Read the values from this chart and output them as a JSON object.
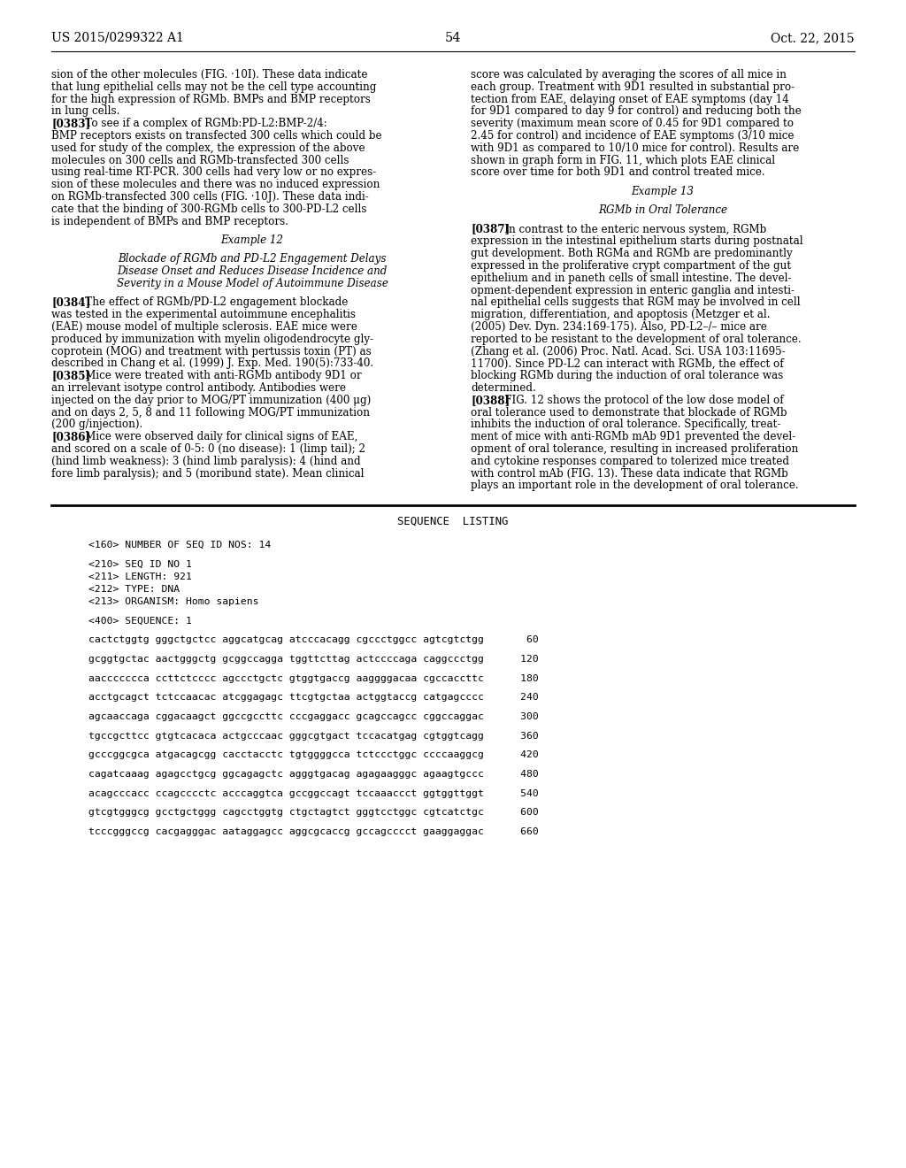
{
  "header_left": "US 2015/0299322 A1",
  "header_right": "Oct. 22, 2015",
  "page_number": "54",
  "background_color": "#ffffff",
  "text_color": "#000000",
  "left_col_lines": [
    {
      "type": "normal",
      "text": "sion of the other molecules (FIG. ·10I). These data indicate"
    },
    {
      "type": "normal",
      "text": "that lung epithelial cells may not be the cell type accounting"
    },
    {
      "type": "normal",
      "text": "for the high expression of RGMb. BMPs and BMP receptors"
    },
    {
      "type": "normal",
      "text": "in lung cells."
    },
    {
      "type": "para",
      "bold": "[0383]",
      "text": "   To see if a complex of RGMb:PD-L2:BMP-2/4:"
    },
    {
      "type": "normal",
      "text": "BMP receptors exists on transfected 300 cells which could be"
    },
    {
      "type": "normal",
      "text": "used for study of the complex, the expression of the above"
    },
    {
      "type": "normal",
      "text": "molecules on 300 cells and RGMb-transfected 300 cells"
    },
    {
      "type": "normal",
      "text": "using real-time RT-PCR. 300 cells had very low or no expres-"
    },
    {
      "type": "normal",
      "text": "sion of these molecules and there was no induced expression"
    },
    {
      "type": "normal",
      "text": "on RGMb-transfected 300 cells (FIG. ·10J). These data indi-"
    },
    {
      "type": "normal",
      "text": "cate that the binding of 300-RGMb cells to 300-PD-L2 cells"
    },
    {
      "type": "normal",
      "text": "is independent of BMPs and BMP receptors."
    },
    {
      "type": "blank",
      "text": ""
    },
    {
      "type": "center",
      "text": "Example 12"
    },
    {
      "type": "blank",
      "text": ""
    },
    {
      "type": "center",
      "text": "Blockade of RGMb and PD-L2 Engagement Delays"
    },
    {
      "type": "center",
      "text": "Disease Onset and Reduces Disease Incidence and"
    },
    {
      "type": "center",
      "text": "Severity in a Mouse Model of Autoimmune Disease"
    },
    {
      "type": "blank",
      "text": ""
    },
    {
      "type": "para",
      "bold": "[0384]",
      "text": "   The effect of RGMb/PD-L2 engagement blockade"
    },
    {
      "type": "normal",
      "text": "was tested in the experimental autoimmune encephalitis"
    },
    {
      "type": "normal",
      "text": "(EAE) mouse model of multiple sclerosis. EAE mice were"
    },
    {
      "type": "normal",
      "text": "produced by immunization with myelin oligodendrocyte gly-"
    },
    {
      "type": "normal",
      "text": "coprotein (MOG) and treatment with pertussis toxin (PT) as"
    },
    {
      "type": "normal",
      "text": "described in Chang et al. (1999) J. Exp. Med. 190(5):733-40."
    },
    {
      "type": "para",
      "bold": "[0385]",
      "text": "   Mice were treated with anti-RGMb antibody 9D1 or"
    },
    {
      "type": "normal",
      "text": "an irrelevant isotype control antibody. Antibodies were"
    },
    {
      "type": "normal",
      "text": "injected on the day prior to MOG/PT immunization (400 μg)"
    },
    {
      "type": "normal",
      "text": "and on days 2, 5, 8 and 11 following MOG/PT immunization"
    },
    {
      "type": "normal",
      "text": "(200 g/injection)."
    },
    {
      "type": "para",
      "bold": "[0386]",
      "text": "   Mice were observed daily for clinical signs of EAE,"
    },
    {
      "type": "normal",
      "text": "and scored on a scale of 0-5: 0 (no disease): 1 (limp tail); 2"
    },
    {
      "type": "normal",
      "text": "(hind limb weakness): 3 (hind limb paralysis): 4 (hind and"
    },
    {
      "type": "normal",
      "text": "fore limb paralysis); and 5 (moribund state). Mean clinical"
    }
  ],
  "right_col_lines": [
    {
      "type": "normal",
      "text": "score was calculated by averaging the scores of all mice in"
    },
    {
      "type": "normal",
      "text": "each group. Treatment with 9D1 resulted in substantial pro-"
    },
    {
      "type": "normal",
      "text": "tection from EAE, delaying onset of EAE symptoms (day 14"
    },
    {
      "type": "normal",
      "text": "for 9D1 compared to day 9 for control) and reducing both the"
    },
    {
      "type": "normal",
      "text": "severity (maximum mean score of 0.45 for 9D1 compared to"
    },
    {
      "type": "normal",
      "text": "2.45 for control) and incidence of EAE symptoms (3/10 mice"
    },
    {
      "type": "normal",
      "text": "with 9D1 as compared to 10/10 mice for control). Results are"
    },
    {
      "type": "normal",
      "text": "shown in graph form in FIG. 11, which plots EAE clinical"
    },
    {
      "type": "normal",
      "text": "score over time for both 9D1 and control treated mice."
    },
    {
      "type": "blank",
      "text": ""
    },
    {
      "type": "center",
      "text": "Example 13"
    },
    {
      "type": "blank",
      "text": ""
    },
    {
      "type": "center",
      "text": "RGMb in Oral Tolerance"
    },
    {
      "type": "blank",
      "text": ""
    },
    {
      "type": "para",
      "bold": "[0387]",
      "text": "   In contrast to the enteric nervous system, RGMb"
    },
    {
      "type": "normal",
      "text": "expression in the intestinal epithelium starts during postnatal"
    },
    {
      "type": "normal",
      "text": "gut development. Both RGMa and RGMb are predominantly"
    },
    {
      "type": "normal",
      "text": "expressed in the proliferative crypt compartment of the gut"
    },
    {
      "type": "normal",
      "text": "epithelium and in paneth cells of small intestine. The devel-"
    },
    {
      "type": "normal",
      "text": "opment-dependent expression in enteric ganglia and intesti-"
    },
    {
      "type": "normal",
      "text": "nal epithelial cells suggests that RGM may be involved in cell"
    },
    {
      "type": "normal",
      "text": "migration, differentiation, and apoptosis (Metzger et al."
    },
    {
      "type": "normal",
      "text": "(2005) Dev. Dyn. 234:169-175). Also, PD-L2–/– mice are"
    },
    {
      "type": "normal",
      "text": "reported to be resistant to the development of oral tolerance."
    },
    {
      "type": "normal",
      "text": "(Zhang et al. (2006) Proc. Natl. Acad. Sci. USA 103:11695-"
    },
    {
      "type": "normal",
      "text": "11700). Since PD-L2 can interact with RGMb, the effect of"
    },
    {
      "type": "normal",
      "text": "blocking RGMb during the induction of oral tolerance was"
    },
    {
      "type": "normal",
      "text": "determined."
    },
    {
      "type": "para",
      "bold": "[0388]",
      "text": "   FIG. 12 shows the protocol of the low dose model of"
    },
    {
      "type": "normal",
      "text": "oral tolerance used to demonstrate that blockade of RGMb"
    },
    {
      "type": "normal",
      "text": "inhibits the induction of oral tolerance. Specifically, treat-"
    },
    {
      "type": "normal",
      "text": "ment of mice with anti-RGMb mAb 9D1 prevented the devel-"
    },
    {
      "type": "normal",
      "text": "opment of oral tolerance, resulting in increased proliferation"
    },
    {
      "type": "normal",
      "text": "and cytokine responses compared to tolerized mice treated"
    },
    {
      "type": "normal",
      "text": "with control mAb (FIG. 13). These data indicate that RGMb"
    },
    {
      "type": "normal",
      "text": "plays an important role in the development of oral tolerance."
    }
  ],
  "sequence_title": "SEQUENCE  LISTING",
  "sequence_lines": [
    "<160> NUMBER OF SEQ ID NOS: 14",
    "",
    "<210> SEQ ID NO 1",
    "<211> LENGTH: 921",
    "<212> TYPE: DNA",
    "<213> ORGANISM: Homo sapiens",
    "",
    "<400> SEQUENCE: 1",
    "",
    "cactctggtg gggctgctcc aggcatgcag atcccacagg cgccctggcc agtcgtctgg       60",
    "",
    "gcggtgctac aactgggctg gcggccagga tggttcttag actccccaga caggccctgg      120",
    "",
    "aaccccccca ccttctcccc agccctgctc gtggtgaccg aaggggacaa cgccaccttc      180",
    "",
    "acctgcagct tctccaacac atcggagagc ttcgtgctaa actggtaccg catgagcccc      240",
    "",
    "agcaaccaga cggacaagct ggccgccttc cccgaggacc gcagccagcc cggccaggac      300",
    "",
    "tgccgcttcc gtgtcacaca actgcccaac gggcgtgact tccacatgag cgtggtcagg      360",
    "",
    "gcccggcgca atgacagcgg cacctacctc tgtggggcca tctccctggc ccccaaggcg      420",
    "",
    "cagatcaaag agagcctgcg ggcagagctc agggtgacag agagaagggc agaagtgccc      480",
    "",
    "acagcccacc ccagcccctc acccaggtca gccggccagt tccaaaccct ggtggttggt      540",
    "",
    "gtcgtgggcg gcctgctggg cagcctggtg ctgctagtct gggtcctggc cgtcatctgc      600",
    "",
    "tcccgggccg cacgagggac aataggagcc aggcgcaccg gccagcccct gaaggaggac      660"
  ]
}
